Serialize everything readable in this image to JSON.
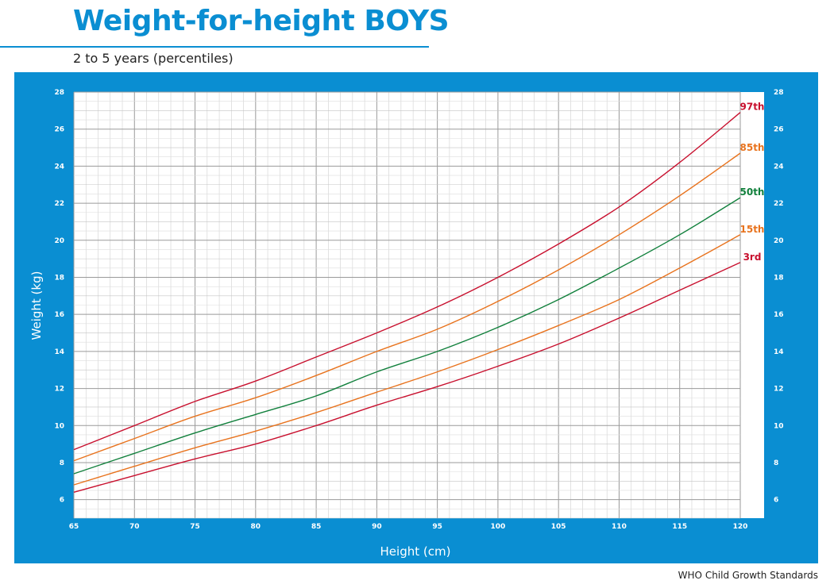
{
  "header": {
    "title": "Weight-for-height BOYS",
    "subtitle": "2 to 5 years (percentiles)"
  },
  "footer": {
    "source": "WHO Child Growth Standards"
  },
  "colors": {
    "accent": "#0a8ed2",
    "p97": "#c8102e",
    "p85": "#e8731e",
    "p50": "#11803c",
    "p15": "#e8731e",
    "p3": "#c8102e"
  },
  "chart_data": {
    "type": "line",
    "xlabel": "Height (cm)",
    "ylabel": "Weight (kg)",
    "xlim": [
      65,
      120
    ],
    "ylim": [
      5,
      28
    ],
    "grid": true,
    "x_ticks": [
      65,
      70,
      75,
      80,
      85,
      90,
      95,
      100,
      105,
      110,
      115,
      120
    ],
    "y_ticks": [
      6,
      8,
      10,
      12,
      14,
      16,
      18,
      20,
      22,
      24,
      26,
      28
    ],
    "x": [
      65,
      70,
      75,
      80,
      85,
      90,
      95,
      100,
      105,
      110,
      115,
      120
    ],
    "series": [
      {
        "name": "97th",
        "color_key": "p97",
        "values": [
          8.7,
          10.0,
          11.3,
          12.4,
          13.7,
          15.0,
          16.4,
          18.0,
          19.8,
          21.8,
          24.2,
          26.9
        ]
      },
      {
        "name": "85th",
        "color_key": "p85",
        "values": [
          8.1,
          9.3,
          10.5,
          11.5,
          12.7,
          14.0,
          15.2,
          16.7,
          18.4,
          20.3,
          22.4,
          24.7
        ]
      },
      {
        "name": "50th",
        "color_key": "p50",
        "values": [
          7.4,
          8.5,
          9.6,
          10.6,
          11.6,
          12.9,
          14.0,
          15.3,
          16.8,
          18.5,
          20.3,
          22.3
        ]
      },
      {
        "name": "15th",
        "color_key": "p15",
        "values": [
          6.8,
          7.8,
          8.8,
          9.7,
          10.7,
          11.8,
          12.9,
          14.1,
          15.4,
          16.8,
          18.5,
          20.3
        ]
      },
      {
        "name": "3rd",
        "color_key": "p3",
        "values": [
          6.4,
          7.3,
          8.2,
          9.0,
          10.0,
          11.1,
          12.1,
          13.2,
          14.4,
          15.8,
          17.3,
          18.8
        ]
      }
    ]
  }
}
